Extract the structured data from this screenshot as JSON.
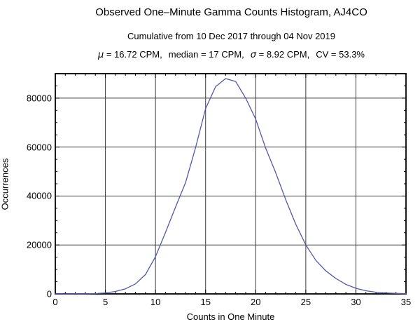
{
  "header": {
    "note": "three header lines centered above plot frame"
  },
  "chart_data": {
    "type": "line",
    "title": "Observed One–Minute Gamma Counts Histogram, AJ4CO",
    "subtitle": "Cumulative from 10 Dec 2017 through 04 Nov 2019",
    "annotation": {
      "mu_symbol": "μ",
      "mu_text": " = 16.72 CPM,",
      "median_text": "median = 17 CPM,",
      "sigma_symbol": "σ",
      "sigma_text": " = 8.92 CPM,",
      "cv_text": "CV = 53.3%"
    },
    "xlabel": "Counts in One Minute",
    "ylabel": "Occurrences",
    "xlim": [
      0,
      35
    ],
    "ylim": [
      0,
      90000
    ],
    "x": [
      0,
      1,
      2,
      3,
      4,
      5,
      6,
      7,
      8,
      9,
      10,
      11,
      12,
      13,
      14,
      15,
      16,
      17,
      18,
      19,
      20,
      21,
      22,
      23,
      24,
      25,
      26,
      27,
      28,
      29,
      30,
      31,
      32,
      33,
      34,
      35
    ],
    "values": [
      0,
      0,
      20,
      60,
      150,
      400,
      1000,
      2100,
      4100,
      7900,
      15200,
      25200,
      35500,
      45500,
      59800,
      75700,
      84700,
      88000,
      86800,
      80000,
      71400,
      59500,
      49500,
      38500,
      28500,
      20000,
      13700,
      9400,
      6300,
      3900,
      2300,
      1300,
      700,
      400,
      200,
      100
    ],
    "x_ticks": {
      "values": [
        0,
        5,
        10,
        15,
        20,
        25,
        30,
        35
      ],
      "labels": [
        "0",
        "5",
        "10",
        "15",
        "20",
        "25",
        "30",
        "35"
      ]
    },
    "y_ticks": {
      "values": [
        0,
        20000,
        40000,
        60000,
        80000
      ],
      "labels": [
        "0",
        "20000",
        "40000",
        "60000",
        "80000"
      ]
    },
    "x_minor_step": 1,
    "y_minor_step": 5000,
    "grid": true,
    "grid_x": [
      5,
      10,
      15,
      20,
      25,
      30
    ],
    "grid_y": [
      20000,
      40000,
      60000,
      80000
    ],
    "legend": "none",
    "colors": {
      "line": "#5058a8",
      "frame": "#000000",
      "grid": "#3c3c3c",
      "background": "#ffffff",
      "text": "#000000"
    }
  }
}
